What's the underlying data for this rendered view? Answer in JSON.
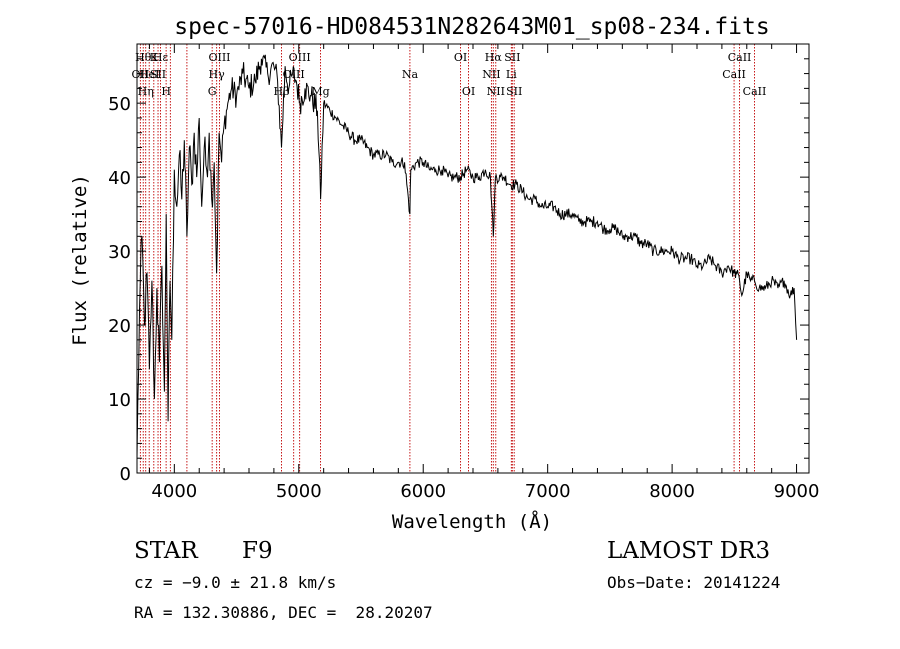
{
  "chart_data": {
    "type": "line",
    "title": "spec-57016-HD084531N282643M01_sp08-234.fits",
    "xlabel": "Wavelength (Å)",
    "ylabel": "Flux (relative)",
    "xlim": [
      3700,
      9100
    ],
    "ylim": [
      0,
      58
    ],
    "xticks": [
      4000,
      5000,
      6000,
      7000,
      8000,
      9000
    ],
    "yticks": [
      0,
      10,
      20,
      30,
      40,
      50
    ],
    "xtick_labels": [
      "4000",
      "5000",
      "6000",
      "7000",
      "8000",
      "9000"
    ],
    "ytick_labels": [
      "0",
      "10",
      "20",
      "30",
      "40",
      "50"
    ],
    "series": [
      {
        "name": "flux",
        "color": "#000000",
        "x": [
          3700,
          3720,
          3740,
          3760,
          3780,
          3800,
          3820,
          3840,
          3860,
          3880,
          3900,
          3920,
          3935,
          3950,
          3965,
          3980,
          4000,
          4020,
          4040,
          4060,
          4080,
          4101,
          4120,
          4140,
          4160,
          4180,
          4200,
          4220,
          4240,
          4260,
          4280,
          4300,
          4320,
          4340,
          4360,
          4380,
          4400,
          4430,
          4460,
          4500,
          4550,
          4600,
          4650,
          4700,
          4750,
          4800,
          4830,
          4861,
          4890,
          4920,
          4950,
          4980,
          5010,
          5050,
          5100,
          5150,
          5175,
          5200,
          5250,
          5300,
          5350,
          5400,
          5450,
          5500,
          5550,
          5600,
          5650,
          5700,
          5750,
          5800,
          5850,
          5893,
          5900,
          5950,
          6000,
          6050,
          6100,
          6150,
          6200,
          6250,
          6300,
          6350,
          6400,
          6450,
          6500,
          6540,
          6563,
          6580,
          6620,
          6650,
          6700,
          6750,
          6800,
          6850,
          6900,
          6950,
          7000,
          7050,
          7100,
          7150,
          7200,
          7250,
          7300,
          7350,
          7400,
          7450,
          7500,
          7550,
          7600,
          7650,
          7700,
          7750,
          7800,
          7850,
          7900,
          7950,
          8000,
          8050,
          8100,
          8150,
          8200,
          8250,
          8300,
          8350,
          8400,
          8450,
          8498,
          8520,
          8542,
          8560,
          8600,
          8630,
          8662,
          8700,
          8750,
          8800,
          8850,
          8900,
          8950,
          8980,
          9000
        ],
        "y": [
          2,
          22,
          32,
          20,
          27,
          14,
          26,
          10,
          25,
          15,
          28,
          11,
          35,
          7,
          26,
          18,
          41,
          36,
          43,
          37,
          45,
          32,
          44,
          39,
          46,
          40,
          48,
          36,
          44,
          41,
          46,
          37,
          42,
          27,
          46,
          42,
          47,
          50,
          52,
          51,
          54,
          52,
          53,
          56,
          54,
          55,
          53,
          44,
          55,
          52,
          54,
          53,
          50,
          52,
          51,
          49,
          37,
          50,
          49,
          48,
          47,
          46,
          45,
          45,
          44,
          43,
          43,
          43,
          42,
          42,
          42,
          35,
          41,
          42,
          42,
          41,
          41,
          41,
          40,
          40,
          40,
          41,
          40,
          40,
          41,
          40,
          32,
          40,
          40,
          40,
          39,
          39,
          38,
          37,
          37,
          36,
          36,
          36,
          35,
          35,
          35,
          34,
          34,
          34,
          34,
          33,
          33,
          33,
          32,
          32,
          32,
          31,
          31,
          30,
          30,
          30,
          30,
          29,
          29,
          29,
          28,
          28,
          29,
          28,
          27,
          28,
          27,
          27,
          26,
          24,
          27,
          26,
          26,
          25,
          25,
          26,
          25,
          26,
          24,
          25,
          18
        ]
      }
    ],
    "lines": [
      {
        "x": 3727,
        "label": "OII",
        "row": 1
      },
      {
        "x": 3750,
        "label": "Hθ",
        "row": 0
      },
      {
        "x": 3770,
        "label": "Hη",
        "row": 2
      },
      {
        "x": 3798,
        "label": "HeI",
        "row": 1
      },
      {
        "x": 3835,
        "label": "K",
        "row": 0
      },
      {
        "x": 3869,
        "label": "SII",
        "row": 1
      },
      {
        "x": 3889,
        "label": "Hε",
        "row": 0
      },
      {
        "x": 3934,
        "label": "H",
        "row": 2
      },
      {
        "x": 3968,
        "label": "",
        "row": 0
      },
      {
        "x": 4101,
        "label": "",
        "row": 0
      },
      {
        "x": 4304,
        "label": "G",
        "row": 2
      },
      {
        "x": 4340,
        "label": "Hγ",
        "row": 1
      },
      {
        "x": 4363,
        "label": "OIII",
        "row": 0
      },
      {
        "x": 4861,
        "label": "Hβ",
        "row": 2
      },
      {
        "x": 4959,
        "label": "OIII",
        "row": 1
      },
      {
        "x": 5007,
        "label": "OIII",
        "row": 0
      },
      {
        "x": 5175,
        "label": "Mg",
        "row": 2
      },
      {
        "x": 5893,
        "label": "Na",
        "row": 1
      },
      {
        "x": 6300,
        "label": "OI",
        "row": 0
      },
      {
        "x": 6364,
        "label": "OI",
        "row": 2
      },
      {
        "x": 6548,
        "label": "NII",
        "row": 1
      },
      {
        "x": 6563,
        "label": "Hα",
        "row": 0
      },
      {
        "x": 6583,
        "label": "NII",
        "row": 2
      },
      {
        "x": 6708,
        "label": "Li",
        "row": 1
      },
      {
        "x": 6716,
        "label": "SII",
        "row": 0
      },
      {
        "x": 6731,
        "label": "SII",
        "row": 2
      },
      {
        "x": 8498,
        "label": "CaII",
        "row": 1
      },
      {
        "x": 8542,
        "label": "CaII",
        "row": 0
      },
      {
        "x": 8662,
        "label": "CaII",
        "row": 2
      }
    ],
    "grid": false,
    "legend": "none"
  },
  "info": {
    "object_class": "STAR",
    "subclass": "F9",
    "survey": "LAMOST DR3",
    "cz": "cz = −9.0 ± 21.8 km/s",
    "obs_date": "Obs−Date: 20141224",
    "coords": "RA = 132.30886, DEC =  28.20207"
  },
  "colors": {
    "line_marker": "#c00000",
    "spectrum": "#000000",
    "axes": "#000000"
  }
}
